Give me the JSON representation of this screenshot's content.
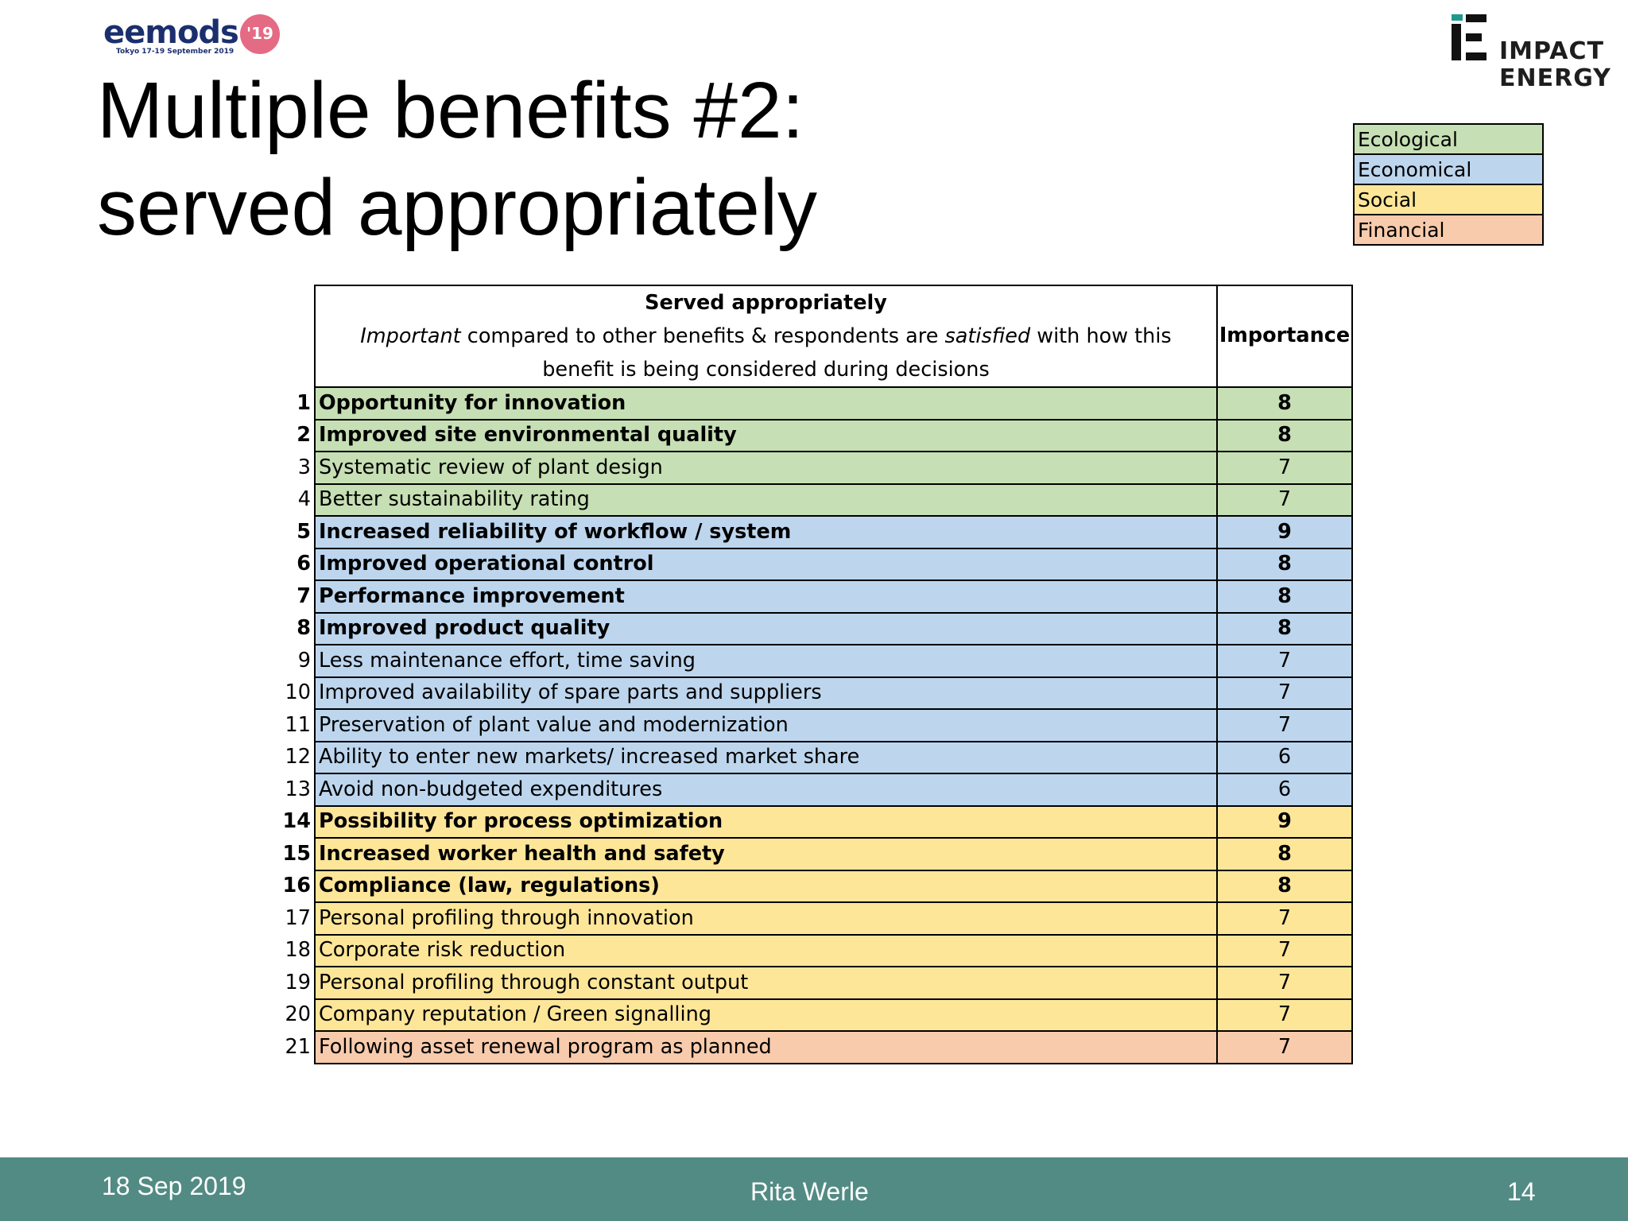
{
  "header": {
    "eemods_logo": {
      "word": "eemods",
      "year": "'19",
      "subtitle": "Tokyo 17-19 September 2019"
    },
    "impact_logo": {
      "line1": "IMPACT",
      "line2": "ENERGY"
    }
  },
  "title": {
    "line1": "Multiple benefits #2:",
    "line2": "served appropriately"
  },
  "legend": [
    {
      "label": "Ecological",
      "color": "#c6dfb4"
    },
    {
      "label": "Economical",
      "color": "#bdd6ee"
    },
    {
      "label": "Social",
      "color": "#fee699"
    },
    {
      "label": "Financial",
      "color": "#f8cbac"
    }
  ],
  "table": {
    "header": {
      "title": "Served appropriately",
      "line1_a": "Important",
      "line1_b": " compared to other benefits & respondents are ",
      "line1_c": "satisfied",
      "line1_d": " with how this",
      "line2": "benefit is being considered during decisions",
      "importance": "Importance"
    },
    "rows": [
      {
        "rank": "1",
        "benefit": "Opportunity for innovation",
        "importance": "8",
        "category": "ecological",
        "bold": true
      },
      {
        "rank": "2",
        "benefit": "Improved site environmental quality",
        "importance": "8",
        "category": "ecological",
        "bold": true
      },
      {
        "rank": "3",
        "benefit": "Systematic review of plant design",
        "importance": "7",
        "category": "ecological",
        "bold": false
      },
      {
        "rank": "4",
        "benefit": "Better sustainability rating",
        "importance": "7",
        "category": "ecological",
        "bold": false
      },
      {
        "rank": "5",
        "benefit": "Increased reliability of workflow / system",
        "importance": "9",
        "category": "economical",
        "bold": true
      },
      {
        "rank": "6",
        "benefit": "Improved operational control",
        "importance": "8",
        "category": "economical",
        "bold": true
      },
      {
        "rank": "7",
        "benefit": "Performance improvement",
        "importance": "8",
        "category": "economical",
        "bold": true
      },
      {
        "rank": "8",
        "benefit": "Improved product quality",
        "importance": "8",
        "category": "economical",
        "bold": true
      },
      {
        "rank": "9",
        "benefit": "Less maintenance effort, time saving",
        "importance": "7",
        "category": "economical",
        "bold": false
      },
      {
        "rank": "10",
        "benefit": "Improved availability of spare parts and suppliers",
        "importance": "7",
        "category": "economical",
        "bold": false
      },
      {
        "rank": "11",
        "benefit": "Preservation of plant value and modernization",
        "importance": "7",
        "category": "economical",
        "bold": false
      },
      {
        "rank": "12",
        "benefit": "Ability to enter new markets/ increased market share",
        "importance": "6",
        "category": "economical",
        "bold": false
      },
      {
        "rank": "13",
        "benefit": "Avoid non-budgeted expenditures",
        "importance": "6",
        "category": "economical",
        "bold": false
      },
      {
        "rank": "14",
        "benefit": "Possibility for process optimization",
        "importance": "9",
        "category": "social",
        "bold": true
      },
      {
        "rank": "15",
        "benefit": "Increased worker health and safety",
        "importance": "8",
        "category": "social",
        "bold": true
      },
      {
        "rank": "16",
        "benefit": "Compliance (law, regulations)",
        "importance": "8",
        "category": "social",
        "bold": true
      },
      {
        "rank": "17",
        "benefit": "Personal profiling through innovation",
        "importance": "7",
        "category": "social",
        "bold": false
      },
      {
        "rank": "18",
        "benefit": "Corporate risk reduction",
        "importance": "7",
        "category": "social",
        "bold": false
      },
      {
        "rank": "19",
        "benefit": "Personal profiling through constant output",
        "importance": "7",
        "category": "social",
        "bold": false
      },
      {
        "rank": "20",
        "benefit": "Company reputation / Green signalling",
        "importance": "7",
        "category": "social",
        "bold": false
      },
      {
        "rank": "21",
        "benefit": "Following asset renewal program as planned",
        "importance": "7",
        "category": "financial",
        "bold": false
      }
    ]
  },
  "category_colors": {
    "ecological": "#c6dfb4",
    "economical": "#bdd6ee",
    "social": "#fee699",
    "financial": "#f8cbac"
  },
  "footer": {
    "date": "18 Sep 2019",
    "author": "Rita Werle",
    "page": "14",
    "color": "#528b84"
  }
}
